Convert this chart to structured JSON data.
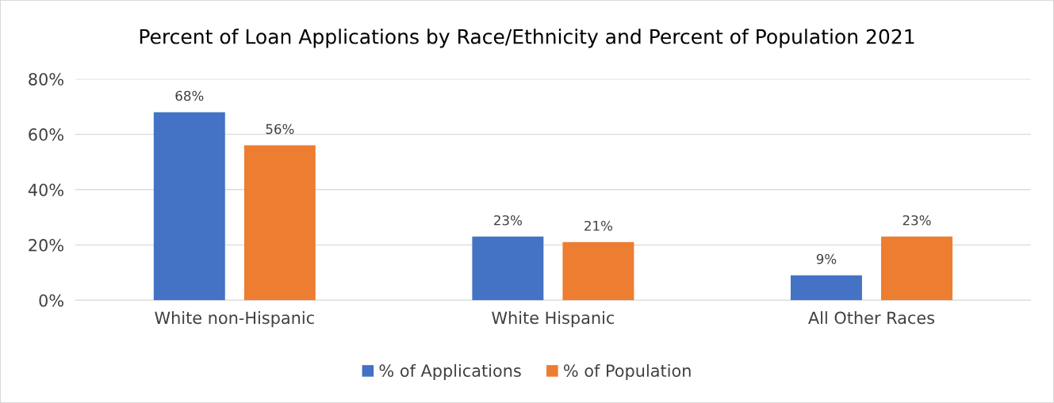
{
  "chart_data": {
    "type": "bar",
    "title": "Percent of Loan Applications by Race/Ethnicity and Percent of Population 2021",
    "categories": [
      "White non-Hispanic",
      "White Hispanic",
      "All Other Races"
    ],
    "series": [
      {
        "name": "% of Applications",
        "color": "#4472c4",
        "values": [
          68,
          23,
          9
        ],
        "value_labels": [
          "68%",
          "23%",
          "9%"
        ]
      },
      {
        "name": "% of Population",
        "color": "#ed7d31",
        "values": [
          56,
          21,
          23
        ],
        "value_labels": [
          "56%",
          "21%",
          "23%"
        ]
      }
    ],
    "ylim": [
      0,
      80
    ],
    "yticks": [
      {
        "value": 0,
        "label": "0%"
      },
      {
        "value": 20,
        "label": "20%"
      },
      {
        "value": 40,
        "label": "40%"
      },
      {
        "value": 60,
        "label": "60%"
      },
      {
        "value": 80,
        "label": "80%"
      }
    ],
    "grid": "y",
    "legend": "bottom"
  }
}
